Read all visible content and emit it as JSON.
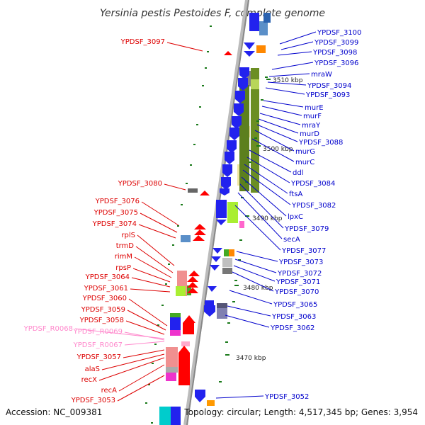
{
  "title": "Yersinia pestis Pestoides F, complete genome",
  "footer": {
    "accession": "Accession: NC_009381",
    "topology": "Topology: circular; Length: 4,517,345 bp; Genes: 3,954"
  },
  "colors": {
    "axis": "#9a9a9a",
    "forward_label": "#dd0000",
    "reverse_label": "#0000cc",
    "rna_label": "#ff88cc",
    "tick": "#1a7a1a",
    "forward_gene": "#ff0000",
    "reverse_gene": "#1a1aee"
  },
  "ticks": [
    {
      "label": "3510 kbp",
      "value": 3510
    },
    {
      "label": "3500 kbp",
      "value": 3500
    },
    {
      "label": "3490 kbp",
      "value": 3490
    },
    {
      "label": "3480 kbp",
      "value": 3480
    },
    {
      "label": "3470 kbp",
      "value": 3470
    }
  ],
  "left_labels": [
    {
      "text": "YPDSF_3097",
      "type": "cds"
    },
    {
      "text": "YPDSF_3080",
      "type": "cds"
    },
    {
      "text": "YPDSF_3076",
      "type": "cds"
    },
    {
      "text": "YPDSF_3075",
      "type": "cds"
    },
    {
      "text": "YPDSF_3074",
      "type": "cds"
    },
    {
      "text": "rplS",
      "type": "cds"
    },
    {
      "text": "trmD",
      "type": "cds"
    },
    {
      "text": "rimM",
      "type": "cds"
    },
    {
      "text": "rpsP",
      "type": "cds"
    },
    {
      "text": "YPDSF_3064",
      "type": "cds"
    },
    {
      "text": "YPDSF_3061",
      "type": "cds"
    },
    {
      "text": "YPDSF_3060",
      "type": "cds"
    },
    {
      "text": "YPDSF_3059",
      "type": "cds"
    },
    {
      "text": "YPDSF_3058",
      "type": "cds"
    },
    {
      "text": "YPDSF_R0068",
      "type": "rna"
    },
    {
      "text": "YPDSF_R0069",
      "type": "rna"
    },
    {
      "text": "YPDSF_R0067",
      "type": "rna"
    },
    {
      "text": "YPDSF_3057",
      "type": "cds"
    },
    {
      "text": "alaS",
      "type": "cds"
    },
    {
      "text": "recX",
      "type": "cds"
    },
    {
      "text": "recA",
      "type": "cds"
    },
    {
      "text": "YPDSF_3053",
      "type": "cds"
    }
  ],
  "right_labels": [
    {
      "text": "YPDSF_3100"
    },
    {
      "text": "YPDSF_3099"
    },
    {
      "text": "YPDSF_3098"
    },
    {
      "text": "YPDSF_3096"
    },
    {
      "text": "mraW"
    },
    {
      "text": "YPDSF_3094"
    },
    {
      "text": "YPDSF_3093"
    },
    {
      "text": "murE"
    },
    {
      "text": "murF"
    },
    {
      "text": "mraY"
    },
    {
      "text": "murD"
    },
    {
      "text": "YPDSF_3088"
    },
    {
      "text": "murG"
    },
    {
      "text": "murC"
    },
    {
      "text": "ddl"
    },
    {
      "text": "YPDSF_3084"
    },
    {
      "text": "ftsA"
    },
    {
      "text": "YPDSF_3082"
    },
    {
      "text": "lpxC"
    },
    {
      "text": "YPDSF_3079"
    },
    {
      "text": "secA"
    },
    {
      "text": "YPDSF_3077"
    },
    {
      "text": "YPDSF_3073"
    },
    {
      "text": "YPDSF_3072"
    },
    {
      "text": "YPDSF_3071"
    },
    {
      "text": "YPDSF_3070"
    },
    {
      "text": "YPDSF_3065"
    },
    {
      "text": "YPDSF_3063"
    },
    {
      "text": "YPDSF_3062"
    },
    {
      "text": "YPDSF_3052"
    }
  ]
}
